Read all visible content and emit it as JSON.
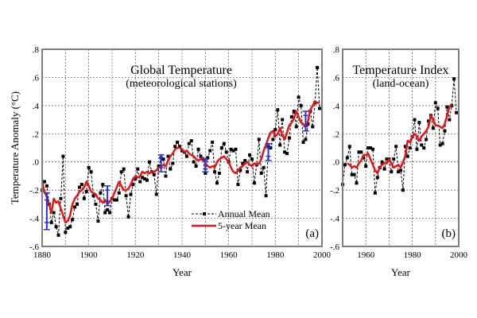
{
  "chart_data": [
    {
      "type": "line",
      "panel_label": "(a)",
      "title": "Global Temperature",
      "subtitle": "(meteorological stations)",
      "xlabel": "Year",
      "ylabel": "Temperature Anomaly (°C)",
      "xlim": [
        1880,
        2000
      ],
      "ylim": [
        -0.6,
        0.8
      ],
      "xticks": [
        1880,
        1900,
        1920,
        1940,
        1960,
        1980,
        2000
      ],
      "xtick_labels": [
        "1880",
        "1900",
        "1920",
        "1940",
        "1960",
        "1980",
        "2000"
      ],
      "yticks": [
        -0.6,
        -0.4,
        -0.2,
        0.0,
        0.2,
        0.4,
        0.6,
        0.8
      ],
      "ytick_labels": [
        "-.6",
        "-.4",
        "-.2",
        ".0",
        ".2",
        ".4",
        ".6",
        ".8"
      ],
      "grid": true,
      "legend": {
        "position": "bottom-center",
        "entries": [
          "Annual Mean",
          "5-year Mean"
        ]
      },
      "x": [
        1880,
        1881,
        1882,
        1883,
        1884,
        1885,
        1886,
        1887,
        1888,
        1889,
        1890,
        1891,
        1892,
        1893,
        1894,
        1895,
        1896,
        1897,
        1898,
        1899,
        1900,
        1901,
        1902,
        1903,
        1904,
        1905,
        1906,
        1907,
        1908,
        1909,
        1910,
        1911,
        1912,
        1913,
        1914,
        1915,
        1916,
        1917,
        1918,
        1919,
        1920,
        1921,
        1922,
        1923,
        1924,
        1925,
        1926,
        1927,
        1928,
        1929,
        1930,
        1931,
        1932,
        1933,
        1934,
        1935,
        1936,
        1937,
        1938,
        1939,
        1940,
        1941,
        1942,
        1943,
        1944,
        1945,
        1946,
        1947,
        1948,
        1949,
        1950,
        1951,
        1952,
        1953,
        1954,
        1955,
        1956,
        1957,
        1958,
        1959,
        1960,
        1961,
        1962,
        1963,
        1964,
        1965,
        1966,
        1967,
        1968,
        1969,
        1970,
        1971,
        1972,
        1973,
        1974,
        1975,
        1976,
        1977,
        1978,
        1979,
        1980,
        1981,
        1982,
        1983,
        1984,
        1985,
        1986,
        1987,
        1988,
        1989,
        1990,
        1991,
        1992,
        1993,
        1994,
        1995,
        1996,
        1997,
        1998,
        1999
      ],
      "series": [
        {
          "name": "Annual Mean",
          "style": "dashed-square",
          "color": "#000000",
          "values": [
            -0.2,
            -0.14,
            -0.17,
            -0.3,
            -0.43,
            -0.36,
            -0.46,
            -0.52,
            -0.26,
            0.04,
            -0.5,
            -0.47,
            -0.46,
            -0.41,
            -0.32,
            -0.3,
            -0.18,
            -0.16,
            -0.26,
            -0.21,
            -0.04,
            -0.07,
            -0.24,
            -0.3,
            -0.42,
            -0.22,
            -0.16,
            -0.36,
            -0.34,
            -0.36,
            -0.26,
            -0.27,
            -0.27,
            -0.22,
            -0.07,
            -0.05,
            -0.24,
            -0.39,
            -0.23,
            -0.16,
            -0.12,
            -0.05,
            -0.14,
            -0.11,
            -0.12,
            -0.13,
            0.0,
            -0.07,
            -0.09,
            -0.23,
            -0.03,
            0.03,
            0.02,
            -0.1,
            0.04,
            -0.05,
            -0.01,
            0.11,
            0.14,
            0.11,
            0.08,
            0.07,
            0.04,
            0.13,
            0.15,
            0.0,
            -0.03,
            0.09,
            0.04,
            0.02,
            -0.08,
            0.03,
            0.08,
            0.14,
            -0.07,
            -0.15,
            -0.08,
            0.1,
            0.13,
            0.07,
            0.0,
            0.09,
            0.08,
            0.09,
            -0.16,
            -0.06,
            -0.01,
            0.01,
            -0.07,
            0.05,
            0.02,
            -0.15,
            -0.02,
            0.16,
            -0.08,
            -0.04,
            -0.24,
            0.11,
            0.1,
            0.16,
            0.23,
            0.37,
            0.12,
            0.3,
            0.07,
            0.06,
            0.17,
            0.32,
            0.36,
            0.25,
            0.46,
            0.4,
            0.14,
            0.16,
            0.27,
            0.36,
            0.25,
            0.42,
            0.67,
            0.38
          ]
        },
        {
          "name": "5-year Mean",
          "style": "solid",
          "color": "#ee1111",
          "values": [
            -0.15,
            -0.21,
            -0.25,
            -0.3,
            -0.36,
            -0.26,
            -0.29,
            -0.28,
            -0.33,
            -0.38,
            -0.43,
            -0.42,
            -0.38,
            -0.3,
            -0.26,
            -0.24,
            -0.21,
            -0.2,
            -0.18,
            -0.14,
            -0.17,
            -0.21,
            -0.22,
            -0.23,
            -0.26,
            -0.27,
            -0.29,
            -0.27,
            -0.3,
            -0.28,
            -0.26,
            -0.22,
            -0.18,
            -0.14,
            -0.17,
            -0.2,
            -0.2,
            -0.19,
            -0.16,
            -0.12,
            -0.1,
            -0.11,
            -0.1,
            -0.07,
            -0.08,
            -0.07,
            -0.08,
            -0.07,
            -0.07,
            -0.06,
            -0.04,
            -0.03,
            -0.02,
            -0.03,
            0.01,
            0.04,
            0.06,
            0.09,
            0.1,
            0.1,
            0.09,
            0.07,
            0.08,
            0.06,
            0.05,
            0.04,
            0.02,
            0.01,
            0.02,
            0.03,
            -0.01,
            -0.03,
            -0.04,
            -0.03,
            -0.04,
            0.0,
            0.02,
            0.03,
            0.04,
            0.02,
            0.0,
            -0.04,
            -0.07,
            -0.08,
            -0.06,
            -0.04,
            -0.03,
            -0.01,
            0.0,
            -0.02,
            -0.03,
            -0.01,
            -0.02,
            -0.01,
            0.02,
            0.08,
            0.12,
            0.17,
            0.21,
            0.22,
            0.18,
            0.2,
            0.24,
            0.19,
            0.16,
            0.21,
            0.26,
            0.28,
            0.31,
            0.36,
            0.32,
            0.28,
            0.27,
            0.25,
            0.29,
            0.37,
            0.4,
            0.43,
            0.42,
            0.42
          ]
        }
      ],
      "error_bars": [
        {
          "x": 1882,
          "center": -0.35,
          "outer": [
            -0.48,
            -0.22
          ],
          "inner": [
            -0.43,
            -0.27
          ]
        },
        {
          "x": 1908,
          "center": -0.24,
          "outer": [
            -0.31,
            -0.17
          ],
          "inner": [
            -0.28,
            -0.2
          ]
        },
        {
          "x": 1931,
          "center": -0.02,
          "outer": [
            -0.07,
            0.05
          ],
          "inner": [
            -0.04,
            0.03
          ]
        },
        {
          "x": 1950,
          "center": -0.03,
          "outer": [
            -0.07,
            0.02
          ],
          "inner": [
            -0.05,
            0.01
          ]
        },
        {
          "x": 1977,
          "center": 0.06,
          "outer": [
            0.01,
            0.13
          ],
          "inner": [
            0.04,
            0.1
          ]
        },
        {
          "x": 1993,
          "center": 0.28,
          "outer": [
            0.22,
            0.36
          ],
          "inner": [
            0.25,
            0.33
          ]
        }
      ],
      "error_bar_color": "#2233dd"
    },
    {
      "type": "line",
      "panel_label": "(b)",
      "title": "Temperature Index",
      "subtitle": "(land-ocean)",
      "xlabel": "Year",
      "xlim": [
        1950,
        2000
      ],
      "ylim": [
        -0.6,
        0.8
      ],
      "xticks": [
        1960,
        1980,
        2000
      ],
      "xtick_labels": [
        "1960",
        "1980",
        "2000"
      ],
      "yticks": [
        -0.6,
        -0.4,
        -0.2,
        0.0,
        0.2,
        0.4,
        0.6,
        0.8
      ],
      "ytick_labels": [
        "-.6",
        "-.4",
        "-.2",
        ".0",
        ".2",
        ".4",
        ".6",
        ".8"
      ],
      "grid": true,
      "x": [
        1950,
        1951,
        1952,
        1953,
        1954,
        1955,
        1956,
        1957,
        1958,
        1959,
        1960,
        1961,
        1962,
        1963,
        1964,
        1965,
        1966,
        1967,
        1968,
        1969,
        1970,
        1971,
        1972,
        1973,
        1974,
        1975,
        1976,
        1977,
        1978,
        1979,
        1980,
        1981,
        1982,
        1983,
        1984,
        1985,
        1986,
        1987,
        1988,
        1989,
        1990,
        1991,
        1992,
        1993,
        1994,
        1995,
        1996,
        1997,
        1998,
        1999
      ],
      "series": [
        {
          "name": "Annual Mean",
          "style": "dashed-square",
          "color": "#000000",
          "values": [
            -0.16,
            -0.02,
            0.03,
            0.11,
            -0.09,
            -0.09,
            -0.15,
            0.07,
            0.07,
            0.03,
            -0.03,
            0.1,
            0.1,
            0.09,
            -0.22,
            -0.11,
            -0.04,
            0.0,
            -0.05,
            0.02,
            0.02,
            -0.07,
            0.02,
            0.11,
            -0.07,
            -0.06,
            -0.2,
            0.11,
            0.04,
            0.1,
            0.18,
            0.3,
            0.09,
            0.28,
            0.12,
            0.1,
            0.16,
            0.29,
            0.33,
            0.24,
            0.42,
            0.38,
            0.12,
            0.13,
            0.22,
            0.39,
            0.3,
            0.4,
            0.59,
            0.35
          ]
        },
        {
          "name": "5-year Mean",
          "style": "solid",
          "color": "#ee1111",
          "values": [
            null,
            null,
            -0.01,
            -0.02,
            -0.04,
            -0.03,
            -0.04,
            -0.01,
            0.01,
            0.05,
            0.05,
            0.06,
            0.02,
            -0.02,
            -0.06,
            -0.08,
            -0.04,
            -0.02,
            -0.01,
            -0.01,
            0.02,
            -0.01,
            -0.04,
            -0.03,
            -0.02,
            -0.04,
            0.0,
            0.04,
            0.15,
            0.14,
            0.18,
            0.2,
            0.18,
            0.15,
            0.18,
            0.2,
            0.22,
            0.25,
            0.33,
            0.3,
            0.26,
            0.26,
            0.25,
            0.24,
            0.27,
            0.33,
            0.39,
            0.41,
            null,
            null
          ]
        }
      ]
    }
  ]
}
